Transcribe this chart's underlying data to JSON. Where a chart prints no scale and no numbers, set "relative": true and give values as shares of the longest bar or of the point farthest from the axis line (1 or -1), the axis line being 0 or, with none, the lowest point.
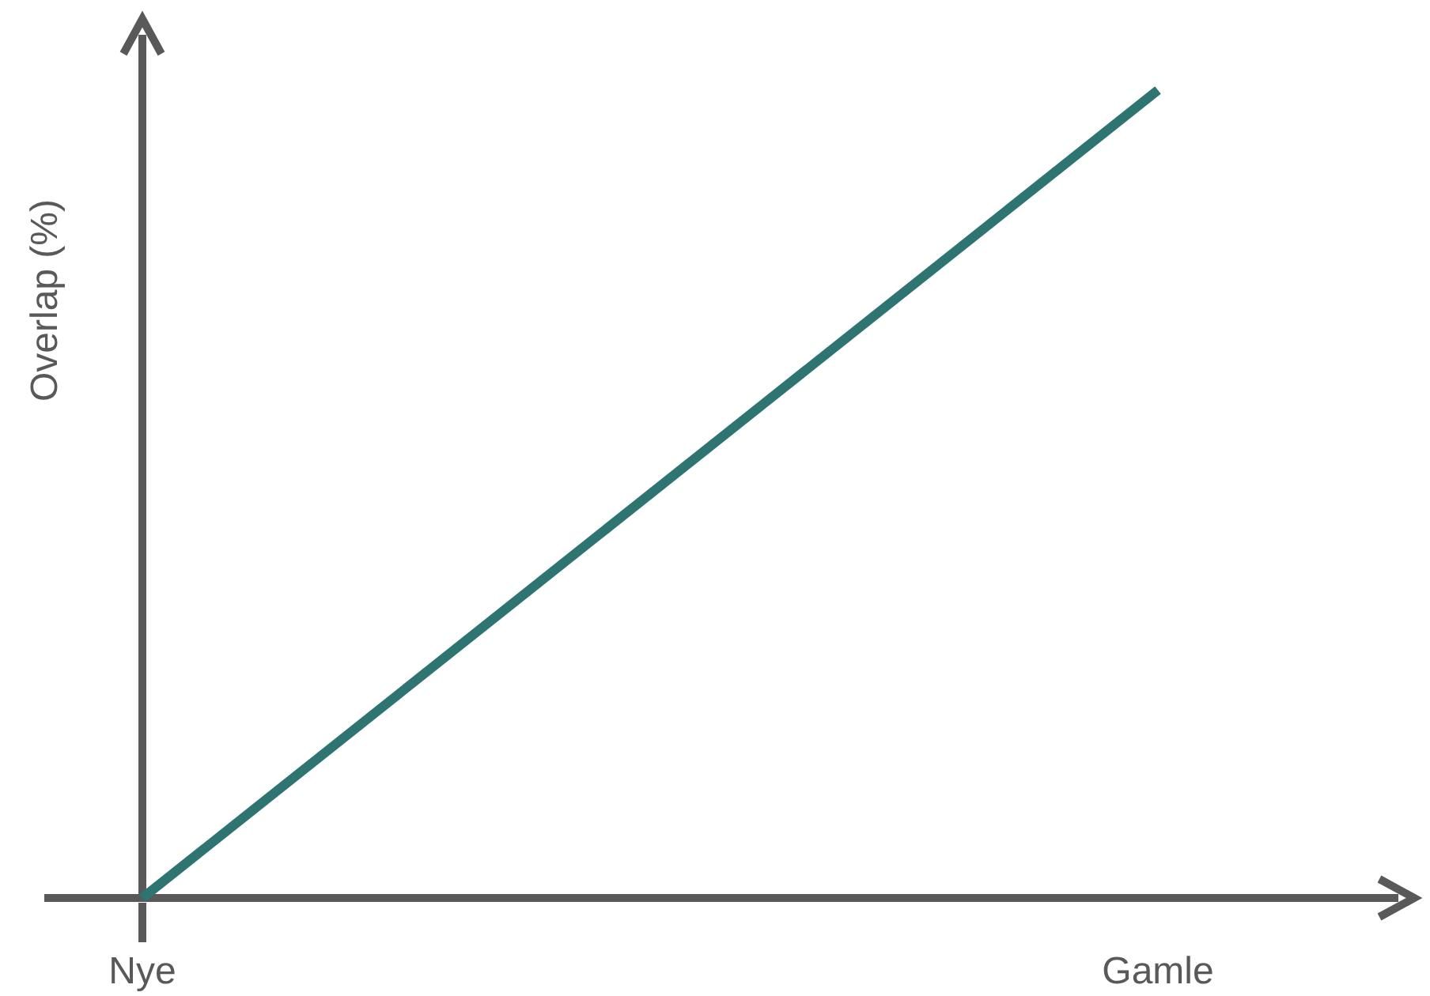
{
  "chart_data": {
    "type": "line",
    "ylabel": "Overlap (%)",
    "categories": [
      "Nye",
      "Gamle"
    ],
    "relative": true,
    "series": [
      {
        "color": "#2e7571",
        "values": [
          0,
          1
        ]
      }
    ]
  }
}
